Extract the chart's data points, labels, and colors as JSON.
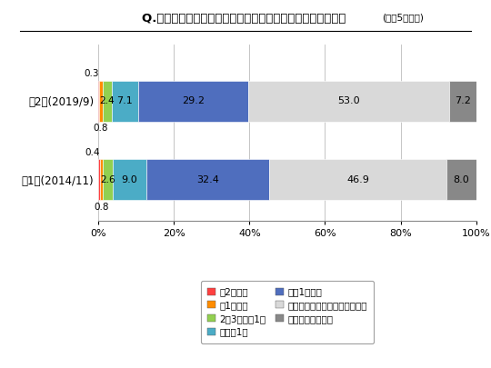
{
  "title": "Q.遊園地・テーマパークにどのくらいの頻度で行きますか？ (直近5年以内)",
  "categories": [
    "第2回(2019/9)",
    "第1回(2014/11)"
  ],
  "series": [
    {
      "label": "月2回以上",
      "color": "#FF4040",
      "values": [
        0.3,
        0.4
      ]
    },
    {
      "label": "月1回程度",
      "color": "#FF8C00",
      "values": [
        0.8,
        0.8
      ]
    },
    {
      "label": "2～3ヶ月に1回",
      "color": "#92D050",
      "values": [
        2.4,
        2.6
      ]
    },
    {
      "label": "半年に1回",
      "color": "#4BACC6",
      "values": [
        7.1,
        9.0
      ]
    },
    {
      "label": "年に1回以下",
      "color": "#4F6EBE",
      "values": [
        29.2,
        32.4
      ]
    },
    {
      "label": "直近５年以内には行っていない",
      "color": "#D9D9D9",
      "values": [
        53.0,
        46.9
      ]
    },
    {
      "label": "行ったことはない",
      "color": "#888888",
      "values": [
        7.2,
        8.0
      ]
    }
  ],
  "xticks": [
    0,
    20,
    40,
    60,
    80,
    100
  ],
  "background_color": "#FFFFFF",
  "bar_height": 0.52
}
